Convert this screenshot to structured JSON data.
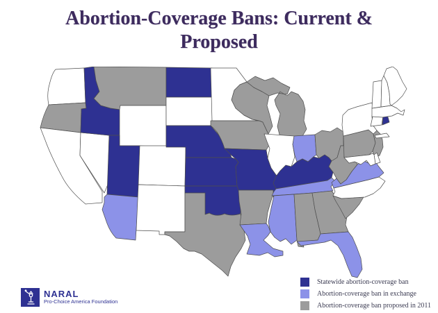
{
  "title": {
    "line1": "Abortion-Coverage Bans: Current &",
    "line2": "Proposed"
  },
  "legend": {
    "items": [
      {
        "id": "statewide",
        "label": "Statewide abortion-coverage ban",
        "color": "#2e3192"
      },
      {
        "id": "exchange",
        "label": "Abortion-coverage ban in exchange",
        "color": "#8c92e8"
      },
      {
        "id": "proposed",
        "label": "Abortion-coverage ban proposed in 2011",
        "color": "#9c9c9c"
      }
    ]
  },
  "map": {
    "no_ban_fill": "#ffffff",
    "border_color": "#4d4d4d",
    "states": [
      {
        "abbr": "WA",
        "name": "Washington",
        "status": "none"
      },
      {
        "abbr": "OR",
        "name": "Oregon",
        "status": "proposed"
      },
      {
        "abbr": "CA",
        "name": "California",
        "status": "none"
      },
      {
        "abbr": "NV",
        "name": "Nevada",
        "status": "none"
      },
      {
        "abbr": "ID",
        "name": "Idaho",
        "status": "statewide"
      },
      {
        "abbr": "MT",
        "name": "Montana",
        "status": "proposed"
      },
      {
        "abbr": "WY",
        "name": "Wyoming",
        "status": "none"
      },
      {
        "abbr": "UT",
        "name": "Utah",
        "status": "statewide"
      },
      {
        "abbr": "CO",
        "name": "Colorado",
        "status": "none"
      },
      {
        "abbr": "AZ",
        "name": "Arizona",
        "status": "exchange"
      },
      {
        "abbr": "NM",
        "name": "New Mexico",
        "status": "none"
      },
      {
        "abbr": "ND",
        "name": "North Dakota",
        "status": "statewide"
      },
      {
        "abbr": "SD",
        "name": "South Dakota",
        "status": "none"
      },
      {
        "abbr": "NE",
        "name": "Nebraska",
        "status": "statewide"
      },
      {
        "abbr": "KS",
        "name": "Kansas",
        "status": "statewide"
      },
      {
        "abbr": "OK",
        "name": "Oklahoma",
        "status": "statewide"
      },
      {
        "abbr": "TX",
        "name": "Texas",
        "status": "proposed"
      },
      {
        "abbr": "MN",
        "name": "Minnesota",
        "status": "none"
      },
      {
        "abbr": "IA",
        "name": "Iowa",
        "status": "proposed"
      },
      {
        "abbr": "MO",
        "name": "Missouri",
        "status": "statewide"
      },
      {
        "abbr": "AR",
        "name": "Arkansas",
        "status": "proposed"
      },
      {
        "abbr": "LA",
        "name": "Louisiana",
        "status": "exchange"
      },
      {
        "abbr": "WI",
        "name": "Wisconsin",
        "status": "proposed"
      },
      {
        "abbr": "MI",
        "name": "Michigan",
        "status": "proposed"
      },
      {
        "abbr": "IL",
        "name": "Illinois",
        "status": "none"
      },
      {
        "abbr": "IN",
        "name": "Indiana",
        "status": "exchange"
      },
      {
        "abbr": "OH",
        "name": "Ohio",
        "status": "proposed"
      },
      {
        "abbr": "KY",
        "name": "Kentucky",
        "status": "statewide"
      },
      {
        "abbr": "TN",
        "name": "Tennessee",
        "status": "exchange"
      },
      {
        "abbr": "MS",
        "name": "Mississippi",
        "status": "exchange"
      },
      {
        "abbr": "AL",
        "name": "Alabama",
        "status": "proposed"
      },
      {
        "abbr": "GA",
        "name": "Georgia",
        "status": "proposed"
      },
      {
        "abbr": "FL",
        "name": "Florida",
        "status": "exchange"
      },
      {
        "abbr": "SC",
        "name": "South Carolina",
        "status": "proposed"
      },
      {
        "abbr": "NC",
        "name": "North Carolina",
        "status": "none"
      },
      {
        "abbr": "VA",
        "name": "Virginia",
        "status": "exchange"
      },
      {
        "abbr": "WV",
        "name": "West Virginia",
        "status": "proposed"
      },
      {
        "abbr": "OH2",
        "name": "",
        "status": "none"
      },
      {
        "abbr": "PA",
        "name": "Pennsylvania",
        "status": "proposed"
      },
      {
        "abbr": "NY",
        "name": "New York",
        "status": "none"
      },
      {
        "abbr": "NJ",
        "name": "New Jersey",
        "status": "proposed"
      },
      {
        "abbr": "DE",
        "name": "Delaware",
        "status": "none"
      },
      {
        "abbr": "MD",
        "name": "Maryland",
        "status": "none"
      },
      {
        "abbr": "CT",
        "name": "Connecticut",
        "status": "none"
      },
      {
        "abbr": "RI",
        "name": "Rhode Island",
        "status": "statewide"
      },
      {
        "abbr": "MA",
        "name": "Massachusetts",
        "status": "none"
      },
      {
        "abbr": "VT",
        "name": "Vermont",
        "status": "none"
      },
      {
        "abbr": "NH",
        "name": "New Hampshire",
        "status": "none"
      },
      {
        "abbr": "ME",
        "name": "Maine",
        "status": "none"
      },
      {
        "abbr": "LI",
        "name": "Long Island",
        "status": "none"
      }
    ]
  },
  "logo": {
    "org": "NARAL",
    "tagline": "Pro-Choice America Foundation"
  }
}
